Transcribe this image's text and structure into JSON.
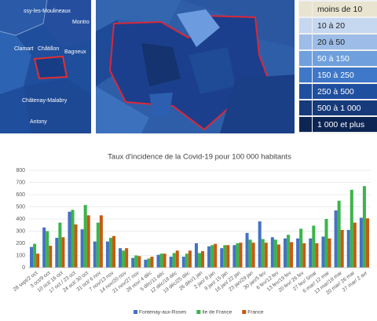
{
  "map_labels": [
    "ssy-les-Moulineaux",
    "Montro",
    "Clamart",
    "Châtillon",
    "Bagneux",
    "Châtenay-Malabry",
    "Antony"
  ],
  "map_legend": [
    "moins de 10",
    "10 à 20",
    "20 à 50",
    "50 à 150",
    "150 à 250",
    "250 à 500",
    "500 à 1 000",
    "1 000 et plus"
  ],
  "chart_data": {
    "type": "bar",
    "title": "Taux d'incidence de la Covid-19 pour 100 000 habitants",
    "categories": [
      "28 sept/2 oct",
      "3 oct/9 oct",
      "10 oct/ 16 oct",
      "17 oct / 23 oct",
      "24 oct/ 30 oct",
      "31 oct/ 6 nov",
      "7 nov/13 nov",
      "14 nov/20 nov",
      "21 nov/27 nov",
      "28 nov/ 4 déc",
      "5 déc/11 déc",
      "12 déc/18 déc",
      "19 déc/25 déc",
      "26 déc/1 jan",
      "2 jan/ 8 jan",
      "9 jan/ 15 jan",
      "16 jan/ 22 jan",
      "23 jan/29 jan",
      "30 jan/5 fev",
      "6 fev/12 fev",
      "13 fev/19 fev",
      "20 fev/ 26 fev",
      "27 fev/ 5mar",
      "6 mar/ 12 mar",
      "13 mar/19 mar",
      "20 mar/ 26 mar",
      "27 mar/ 2 avr"
    ],
    "series": [
      {
        "name": "Fontenay-aux-Roses",
        "color": "#4472c4",
        "values": [
          170,
          330,
          245,
          460,
          315,
          215,
          215,
          160,
          80,
          65,
          105,
          90,
          90,
          200,
          175,
          160,
          185,
          285,
          380,
          250,
          240,
          240,
          240,
          255,
          470,
          310,
          410
        ]
      },
      {
        "name": "Ile de France",
        "color": "#3cb44b",
        "values": [
          195,
          300,
          370,
          475,
          515,
          370,
          245,
          140,
          100,
          75,
          115,
          120,
          115,
          120,
          185,
          185,
          200,
          230,
          235,
          230,
          270,
          320,
          345,
          400,
          550,
          640,
          670
        ]
      },
      {
        "name": "France",
        "color": "#c55a11",
        "values": [
          115,
          180,
          250,
          355,
          430,
          430,
          260,
          160,
          95,
          90,
          115,
          140,
          140,
          135,
          195,
          185,
          205,
          205,
          205,
          190,
          210,
          200,
          200,
          240,
          310,
          370,
          405
        ]
      }
    ],
    "ylim": [
      0,
      800
    ],
    "yticks": [
      0,
      100,
      200,
      300,
      400,
      500,
      600,
      700,
      800
    ],
    "grid": true
  }
}
